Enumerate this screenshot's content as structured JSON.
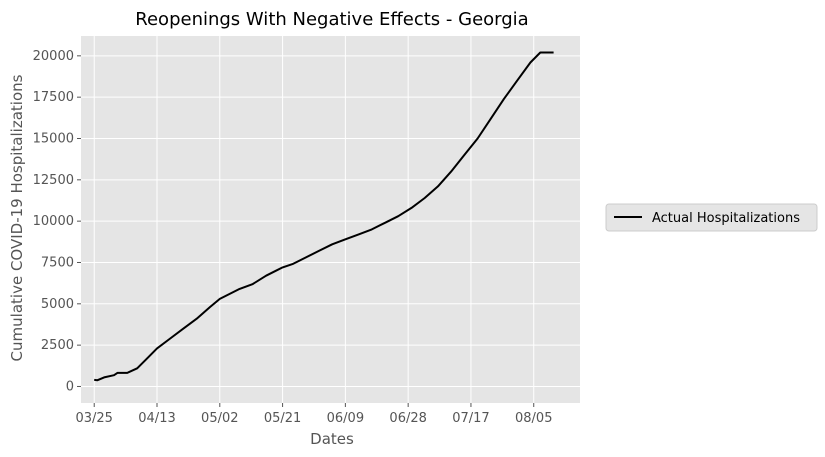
{
  "chart_data": {
    "type": "line",
    "title": "Reopenings With Negative Effects - Georgia",
    "xlabel": "Dates",
    "ylabel": "Cumulative COVID-19 Hospitalizations",
    "xlim": [
      "2020-03-21",
      "2020-08-19"
    ],
    "ylim": [
      -1000,
      21200
    ],
    "xticks": [
      "03/25",
      "04/13",
      "05/02",
      "05/21",
      "06/09",
      "06/28",
      "07/17",
      "08/05"
    ],
    "xtick_dates": [
      "2020-03-25",
      "2020-04-13",
      "2020-05-02",
      "2020-05-21",
      "2020-06-09",
      "2020-06-28",
      "2020-07-17",
      "2020-08-05"
    ],
    "yticks": [
      0,
      2500,
      5000,
      7500,
      10000,
      12500,
      15000,
      17500,
      20000
    ],
    "ytick_labels": [
      "0",
      "2500",
      "5000",
      "7500",
      "10000",
      "12500",
      "15000",
      "17500",
      "20000"
    ],
    "grid": true,
    "legend_position": "right",
    "series": [
      {
        "name": "Actual Hospitalizations",
        "color": "#000000",
        "x": [
          "2020-03-25",
          "2020-03-26",
          "2020-03-28",
          "2020-03-31",
          "2020-04-01",
          "2020-04-04",
          "2020-04-07",
          "2020-04-10",
          "2020-04-13",
          "2020-04-17",
          "2020-04-21",
          "2020-04-25",
          "2020-04-29",
          "2020-05-02",
          "2020-05-05",
          "2020-05-08",
          "2020-05-12",
          "2020-05-16",
          "2020-05-19",
          "2020-05-21",
          "2020-05-24",
          "2020-05-28",
          "2020-06-01",
          "2020-06-05",
          "2020-06-09",
          "2020-06-13",
          "2020-06-17",
          "2020-06-21",
          "2020-06-25",
          "2020-06-29",
          "2020-07-03",
          "2020-07-07",
          "2020-07-11",
          "2020-07-15",
          "2020-07-19",
          "2020-07-23",
          "2020-07-27",
          "2020-07-31",
          "2020-08-04",
          "2020-08-07",
          "2020-08-11"
        ],
        "values": [
          400,
          380,
          550,
          680,
          820,
          820,
          1100,
          1700,
          2300,
          2900,
          3500,
          4100,
          4800,
          5300,
          5600,
          5900,
          6200,
          6700,
          7000,
          7200,
          7400,
          7800,
          8200,
          8600,
          8900,
          9200,
          9500,
          9900,
          10300,
          10800,
          11400,
          12100,
          13000,
          14000,
          15000,
          16200,
          17400,
          18500,
          19600,
          20200,
          20200
        ]
      }
    ]
  }
}
